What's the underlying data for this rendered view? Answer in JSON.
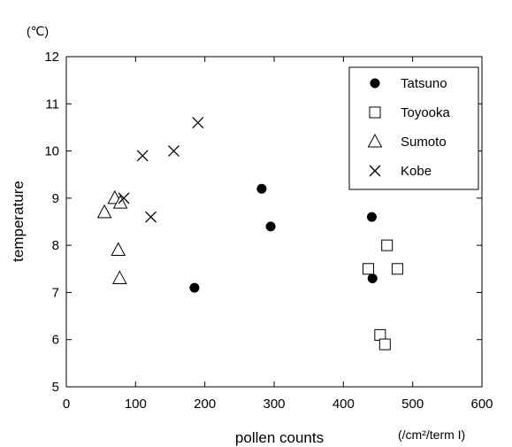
{
  "chart_data": {
    "type": "scatter",
    "title": "",
    "xlabel": "pollen counts",
    "ylabel": "temperature",
    "x_unit": "(/cm²/term I)",
    "y_unit": "(℃)",
    "xlim": [
      0,
      600
    ],
    "ylim": [
      5,
      12
    ],
    "x_ticks": [
      "0",
      "100",
      "200",
      "300",
      "400",
      "500",
      "600"
    ],
    "y_ticks": [
      "5",
      "6",
      "7",
      "8",
      "9",
      "10",
      "11",
      "12"
    ],
    "grid": false,
    "legend_position": "top-right",
    "series": [
      {
        "name": "Tatsuno",
        "marker": "filled-circle",
        "points": [
          [
            185,
            7.1
          ],
          [
            282,
            9.2
          ],
          [
            295,
            8.4
          ],
          [
            441,
            8.6
          ],
          [
            442,
            7.3
          ]
        ]
      },
      {
        "name": "Toyooka",
        "marker": "open-square",
        "points": [
          [
            436,
            7.5
          ],
          [
            463,
            8.0
          ],
          [
            478,
            7.5
          ],
          [
            453,
            6.1
          ],
          [
            460,
            5.9
          ]
        ]
      },
      {
        "name": "Sumoto",
        "marker": "open-triangle",
        "points": [
          [
            55,
            8.7
          ],
          [
            70,
            9.0
          ],
          [
            78,
            8.9
          ],
          [
            75,
            7.9
          ],
          [
            77,
            7.3
          ]
        ]
      },
      {
        "name": "Kobe",
        "marker": "cross",
        "points": [
          [
            110,
            9.9
          ],
          [
            155,
            10.0
          ],
          [
            190,
            10.6
          ],
          [
            83,
            9.0
          ],
          [
            122,
            8.6
          ]
        ]
      }
    ]
  }
}
